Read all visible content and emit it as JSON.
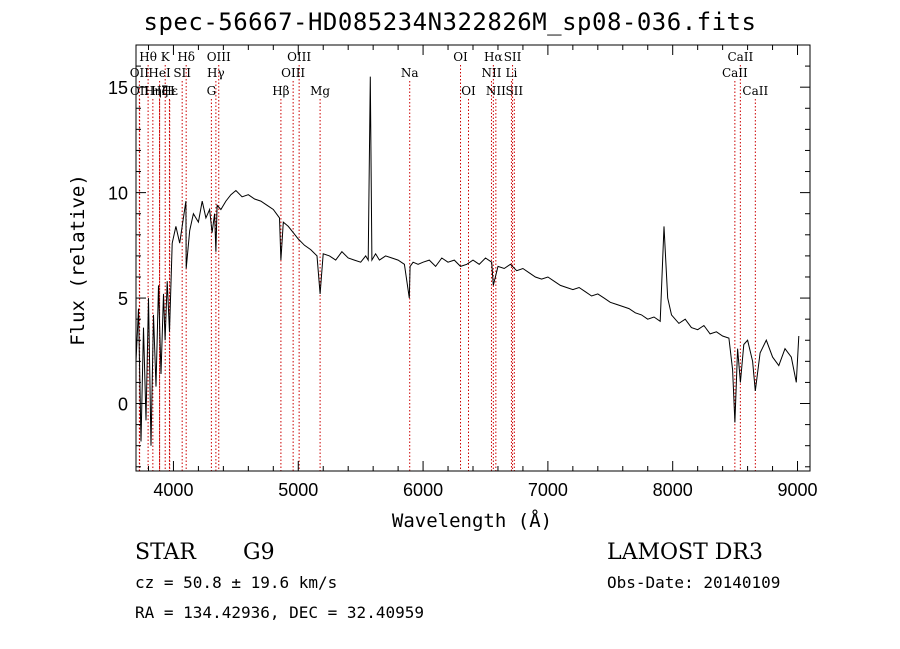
{
  "chart_data": {
    "type": "line",
    "title": "spec-56667-HD085234N322826M_sp08-036.fits",
    "xlabel": "Wavelength (Å)",
    "ylabel": "Flux (relative)",
    "xlim": [
      3700,
      9100
    ],
    "ylim": [
      -3.2,
      17.0
    ],
    "xticks": [
      4000,
      5000,
      6000,
      7000,
      8000,
      9000
    ],
    "yticks": [
      0,
      5,
      10,
      15
    ],
    "grid": false,
    "series": [
      {
        "name": "spectrum",
        "x": [
          3700,
          3720,
          3740,
          3760,
          3780,
          3800,
          3820,
          3840,
          3860,
          3880,
          3900,
          3920,
          3933,
          3950,
          3968,
          3990,
          4020,
          4050,
          4080,
          4100,
          4102,
          4130,
          4160,
          4200,
          4230,
          4260,
          4290,
          4310,
          4330,
          4340,
          4350,
          4380,
          4420,
          4460,
          4500,
          4550,
          4600,
          4650,
          4700,
          4750,
          4800,
          4850,
          4861,
          4880,
          4920,
          4960,
          5000,
          5050,
          5100,
          5150,
          5175,
          5200,
          5250,
          5300,
          5350,
          5400,
          5450,
          5500,
          5540,
          5560,
          5577,
          5590,
          5620,
          5650,
          5700,
          5750,
          5800,
          5850,
          5890,
          5896,
          5920,
          5960,
          6000,
          6050,
          6100,
          6150,
          6200,
          6250,
          6300,
          6350,
          6400,
          6450,
          6500,
          6550,
          6563,
          6600,
          6650,
          6700,
          6750,
          6800,
          6850,
          6900,
          6950,
          7000,
          7050,
          7100,
          7150,
          7200,
          7250,
          7300,
          7350,
          7400,
          7450,
          7500,
          7550,
          7600,
          7650,
          7700,
          7750,
          7800,
          7850,
          7900,
          7930,
          7960,
          7990,
          8020,
          8050,
          8100,
          8150,
          8200,
          8250,
          8300,
          8350,
          8400,
          8450,
          8480,
          8498,
          8520,
          8542,
          8570,
          8600,
          8640,
          8662,
          8700,
          8750,
          8800,
          8850,
          8900,
          8950,
          8990,
          9010
        ],
        "values": [
          2.0,
          4.5,
          -1.8,
          3.6,
          -0.8,
          5.0,
          -2.0,
          4.2,
          0.8,
          5.6,
          1.4,
          5.2,
          3.0,
          5.8,
          3.4,
          7.6,
          8.4,
          7.6,
          8.8,
          9.6,
          6.4,
          8.2,
          9.0,
          8.6,
          9.6,
          8.8,
          9.2,
          8.1,
          9.0,
          7.2,
          9.4,
          9.2,
          9.6,
          9.9,
          10.1,
          9.8,
          9.9,
          9.7,
          9.6,
          9.4,
          9.2,
          8.8,
          6.8,
          8.6,
          8.4,
          8.1,
          7.8,
          7.5,
          7.3,
          7.0,
          5.2,
          7.1,
          7.0,
          6.8,
          7.2,
          6.9,
          6.8,
          6.7,
          7.0,
          6.8,
          15.5,
          6.8,
          7.1,
          6.8,
          7.0,
          6.9,
          6.8,
          6.6,
          5.0,
          6.5,
          6.7,
          6.6,
          6.7,
          6.8,
          6.5,
          6.9,
          6.7,
          6.8,
          6.5,
          6.6,
          6.8,
          6.6,
          6.9,
          6.7,
          5.6,
          6.5,
          6.4,
          6.6,
          6.3,
          6.4,
          6.2,
          6.0,
          5.9,
          6.0,
          5.8,
          5.6,
          5.5,
          5.4,
          5.5,
          5.3,
          5.1,
          5.2,
          5.0,
          4.8,
          4.7,
          4.6,
          4.5,
          4.3,
          4.2,
          4.0,
          4.1,
          3.9,
          8.4,
          5.0,
          4.2,
          4.0,
          3.8,
          4.0,
          3.6,
          3.5,
          3.7,
          3.3,
          3.4,
          3.2,
          3.1,
          1.6,
          -0.9,
          2.6,
          1.0,
          2.8,
          3.0,
          2.0,
          0.6,
          2.4,
          3.0,
          2.2,
          1.8,
          2.6,
          2.2,
          1.0,
          3.2
        ]
      }
    ],
    "lines_top": [
      {
        "label": "Hθ",
        "x": 3797
      },
      {
        "label": "K",
        "x": 3934
      },
      {
        "label": "Hδ",
        "x": 4102
      },
      {
        "label": "OIII",
        "x": 4363
      },
      {
        "label": "OIII",
        "x": 5007
      },
      {
        "label": "OI",
        "x": 6300
      },
      {
        "label": "Hα",
        "x": 6563
      },
      {
        "label": "SII",
        "x": 6717
      },
      {
        "label": "CaII",
        "x": 8542
      }
    ],
    "lines_mid": [
      {
        "label": "OII",
        "x": 3727
      },
      {
        "label": "HeI",
        "x": 3889
      },
      {
        "label": "SII",
        "x": 4070
      },
      {
        "label": "Hγ",
        "x": 4340
      },
      {
        "label": "OIII",
        "x": 4959
      },
      {
        "label": "Na",
        "x": 5893
      },
      {
        "label": "NII",
        "x": 6548
      },
      {
        "label": "Li",
        "x": 6708
      },
      {
        "label": "CaII",
        "x": 8498
      }
    ],
    "lines_low": [
      {
        "label": "OII",
        "x": 3729
      },
      {
        "label": "Hη",
        "x": 3835
      },
      {
        "label": "H",
        "x": 3968
      },
      {
        "label": "G",
        "x": 4304
      },
      {
        "label": "Hβ",
        "x": 4861
      },
      {
        "label": "Mg",
        "x": 5175
      },
      {
        "label": "OI",
        "x": 6364
      },
      {
        "label": "NII",
        "x": 6583
      },
      {
        "label": "SII",
        "x": 6731
      },
      {
        "label": "CaII",
        "x": 8662
      }
    ],
    "lines_extra": [
      {
        "label": "Hε",
        "x": 3970
      },
      {
        "label": "Hζ",
        "x": 3889
      }
    ]
  },
  "info": {
    "object_class": "STAR",
    "subclass": "G9",
    "survey": "LAMOST DR3",
    "redshift": "cz = 50.8 ± 19.6 km/s",
    "obs_date": "Obs-Date: 20140109",
    "coords": "RA = 134.42936, DEC =  32.40959"
  },
  "colors": {
    "spectrum": "#000000",
    "line_markers": "#cc0000",
    "axes": "#000000"
  }
}
